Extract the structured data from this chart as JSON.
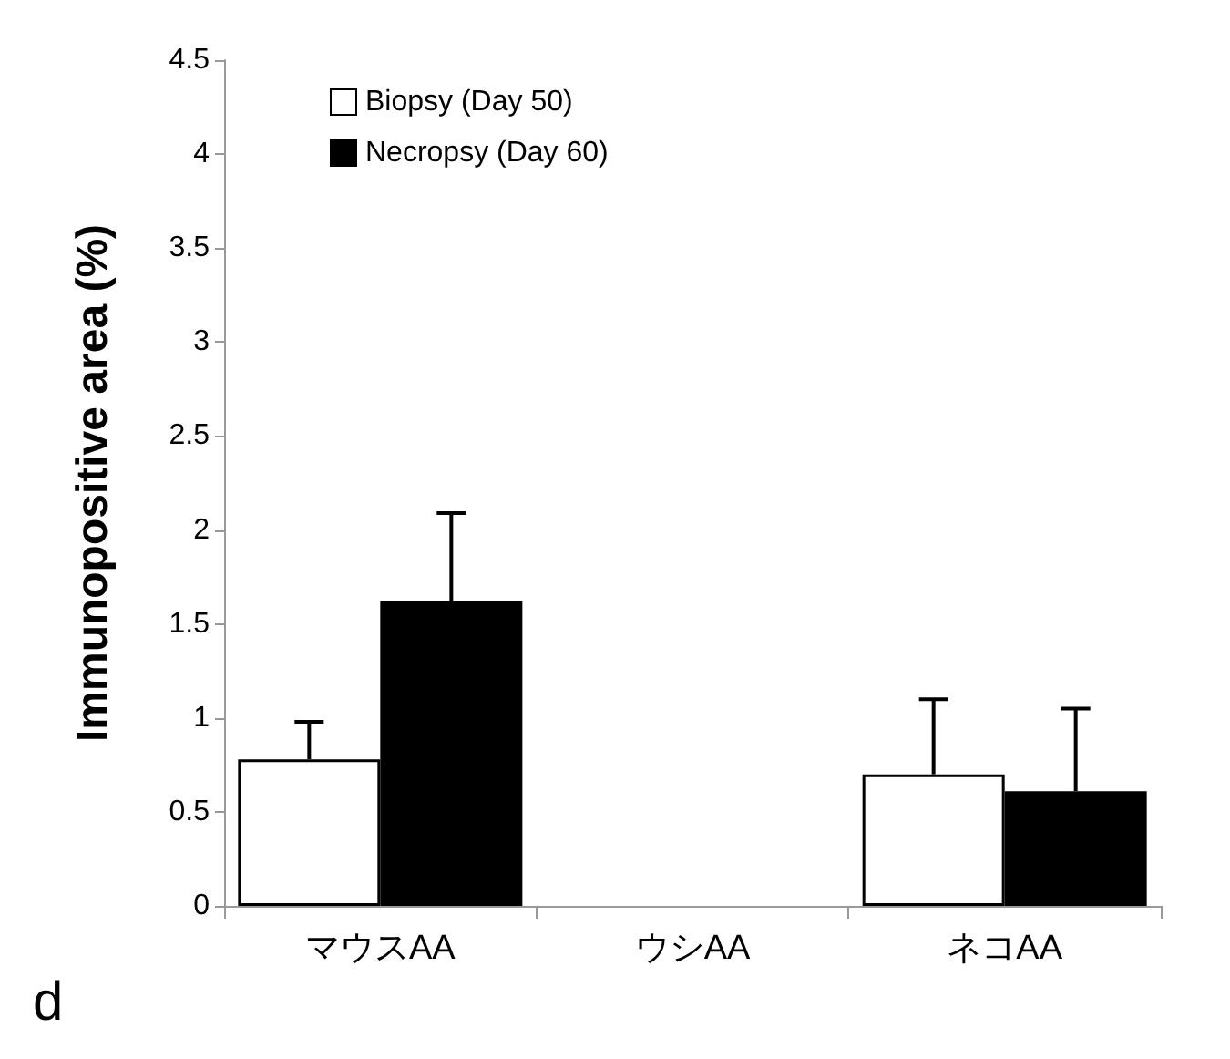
{
  "chart_data": {
    "type": "bar",
    "ylabel": "Immunopositive area (%)",
    "categories": [
      "マウスAA",
      "ウシAA",
      "ネコAA"
    ],
    "series": [
      {
        "name": "Biopsy (Day 50)",
        "color": "#ffffff",
        "values": [
          0.78,
          0,
          0.7
        ],
        "errors": [
          [
            0.78,
            0.98
          ],
          null,
          [
            0.7,
            1.1
          ]
        ]
      },
      {
        "name": "Necropsy (Day 60)",
        "color": "#000000",
        "values": [
          1.62,
          0,
          0.61
        ],
        "errors": [
          [
            1.62,
            2.09
          ],
          null,
          [
            0.61,
            1.05
          ]
        ]
      }
    ],
    "ylim": [
      0,
      4.5
    ],
    "yticks": [
      0,
      0.5,
      1,
      1.5,
      2,
      2.5,
      3,
      3.5,
      4,
      4.5
    ],
    "grid": false,
    "legend": "top left",
    "annotations": [
      "d"
    ]
  }
}
